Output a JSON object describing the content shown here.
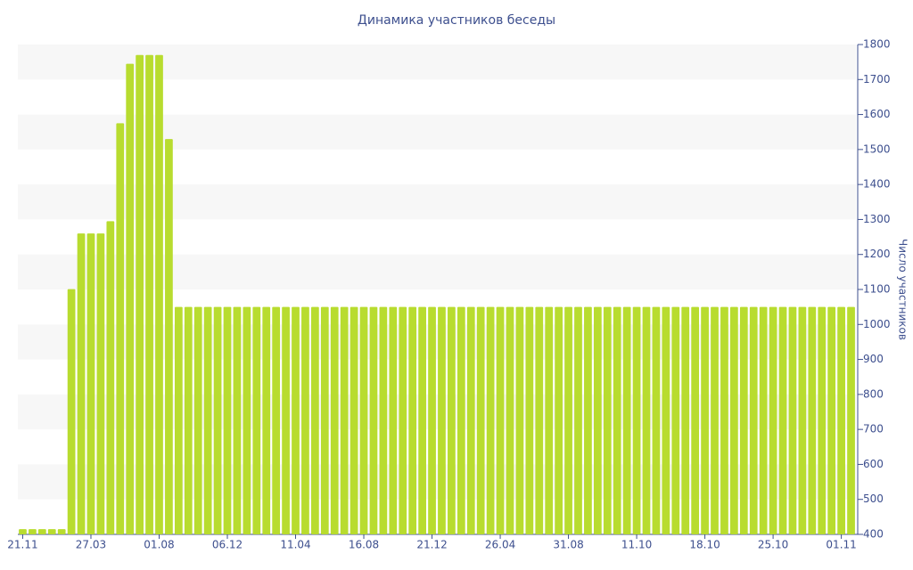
{
  "chart_data": {
    "type": "bar",
    "title": "Динамика участников беседы",
    "y_label": "Число участников",
    "categories": [
      "21.11",
      null,
      null,
      null,
      null,
      null,
      null,
      "27.03",
      null,
      null,
      null,
      null,
      null,
      null,
      "01.08",
      null,
      null,
      null,
      null,
      null,
      null,
      "06.12",
      null,
      null,
      null,
      null,
      null,
      null,
      "11.04",
      null,
      null,
      null,
      null,
      null,
      null,
      "16.08",
      null,
      null,
      null,
      null,
      null,
      null,
      "21.12",
      null,
      null,
      null,
      null,
      null,
      null,
      "26.04",
      null,
      null,
      null,
      null,
      null,
      null,
      "31.08",
      null,
      null,
      null,
      null,
      null,
      null,
      "11.10",
      null,
      null,
      null,
      null,
      null,
      null,
      "18.10",
      null,
      null,
      null,
      null,
      null,
      null,
      "25.10",
      null,
      null,
      null,
      null,
      null,
      null,
      "01.11",
      null
    ],
    "values": [
      415,
      415,
      415,
      415,
      415,
      1101,
      1260,
      1260,
      1260,
      1295,
      1575,
      1745,
      1770,
      1770,
      1770,
      1530,
      1050,
      1050,
      1050,
      1050,
      1050,
      1050,
      1050,
      1050,
      1050,
      1050,
      1050,
      1050,
      1050,
      1050,
      1050,
      1050,
      1050,
      1050,
      1050,
      1050,
      1050,
      1050,
      1050,
      1050,
      1050,
      1050,
      1050,
      1050,
      1050,
      1050,
      1050,
      1050,
      1050,
      1050,
      1050,
      1050,
      1050,
      1050,
      1050,
      1050,
      1050,
      1050,
      1050,
      1050,
      1050,
      1050,
      1050,
      1050,
      1050,
      1050,
      1050,
      1050,
      1050,
      1050,
      1050,
      1050,
      1050,
      1050,
      1050,
      1050,
      1050,
      1050,
      1050,
      1050,
      1050,
      1050,
      1050,
      1050,
      1050,
      1050
    ],
    "color": "#b8dc2f",
    "ylim": [
      400,
      1800
    ],
    "yticks": [
      400,
      500,
      600,
      700,
      800,
      900,
      1000,
      1100,
      1200,
      1300,
      1400,
      1500,
      1600,
      1700,
      1800
    ],
    "grid": true
  }
}
